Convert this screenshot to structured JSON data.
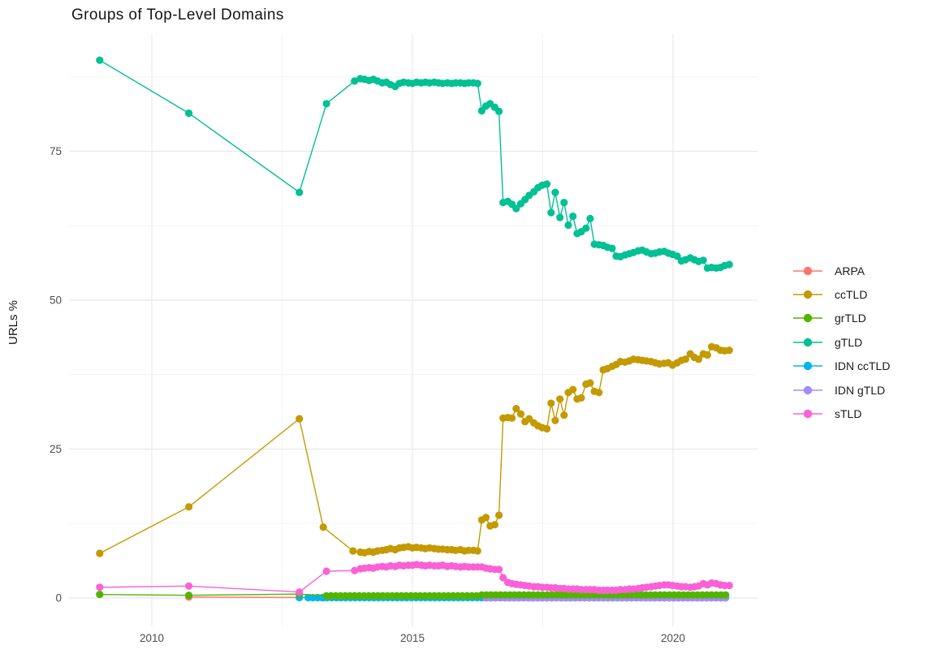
{
  "chart_data": {
    "type": "scatter",
    "title": "Groups of Top-Level Domains",
    "xlabel": "",
    "ylabel": "URLs %",
    "xlim": [
      2008.4,
      2021.7
    ],
    "ylim": [
      -4.7,
      94.7
    ],
    "grid": "on",
    "legend_position": "right",
    "x_ticks": [
      {
        "label": "2010",
        "value": 2010
      },
      {
        "label": "2015",
        "value": 2015
      },
      {
        "label": "2020",
        "value": 2020
      }
    ],
    "x_minor_gridlines": [
      2012.5,
      2017.5
    ],
    "y_ticks": [
      {
        "label": "0",
        "value": 0
      },
      {
        "label": "25",
        "value": 25
      },
      {
        "label": "50",
        "value": 50
      },
      {
        "label": "75",
        "value": 75
      }
    ],
    "y_minor_gridlines": [
      12.5,
      37.5,
      62.5,
      87.5
    ],
    "colors": {
      "grid_major": "#E8E8E8",
      "grid_minor": "#F3F3F3",
      "tick_text": "#4d4d4d",
      "title_text": "#151515"
    },
    "series": [
      {
        "name": "ARPA",
        "color": "#F8766D",
        "points": [
          [
            2010.71,
            0.15
          ],
          [
            2012.83,
            0.1
          ],
          [
            2013.29,
            0.06
          ]
        ],
        "flat_segments": []
      },
      {
        "name": "ccTLD",
        "color": "#C49A00",
        "points": [
          [
            2009,
            7.5
          ],
          [
            2010.71,
            15.3
          ],
          [
            2012.83,
            30.1
          ],
          [
            2013.29,
            11.9
          ],
          [
            2013.86,
            7.9
          ],
          [
            2014,
            7.7
          ],
          [
            2014.08,
            7.6
          ],
          [
            2014.17,
            7.8
          ],
          [
            2014.25,
            7.7
          ],
          [
            2014.33,
            7.9
          ],
          [
            2014.42,
            8
          ],
          [
            2014.5,
            8.1
          ],
          [
            2014.58,
            8.3
          ],
          [
            2014.67,
            8.1
          ],
          [
            2014.75,
            8.4
          ],
          [
            2014.83,
            8.5
          ],
          [
            2014.92,
            8.6
          ],
          [
            2015,
            8.4
          ],
          [
            2015.08,
            8.5
          ],
          [
            2015.17,
            8.4
          ],
          [
            2015.25,
            8.3
          ],
          [
            2015.33,
            8.4
          ],
          [
            2015.42,
            8.3
          ],
          [
            2015.5,
            8.2
          ],
          [
            2015.58,
            8.2
          ],
          [
            2015.67,
            8.1
          ],
          [
            2015.75,
            8.1
          ],
          [
            2015.83,
            8
          ],
          [
            2015.92,
            8.1
          ],
          [
            2016,
            7.9
          ],
          [
            2016.08,
            8
          ],
          [
            2016.17,
            8
          ],
          [
            2016.25,
            7.9
          ],
          [
            2016.33,
            13.1
          ],
          [
            2016.41,
            13.5
          ],
          [
            2016.49,
            12.1
          ],
          [
            2016.58,
            12.3
          ],
          [
            2016.66,
            13.9
          ],
          [
            2016.74,
            30.2
          ],
          [
            2016.83,
            30.3
          ],
          [
            2016.91,
            30.2
          ],
          [
            2016.99,
            31.8
          ],
          [
            2017.08,
            30.9
          ],
          [
            2017.16,
            29.6
          ],
          [
            2017.24,
            30.1
          ],
          [
            2017.33,
            29.4
          ],
          [
            2017.41,
            28.9
          ],
          [
            2017.49,
            28.6
          ],
          [
            2017.58,
            28.4
          ],
          [
            2017.66,
            32.7
          ],
          [
            2017.74,
            29.8
          ],
          [
            2017.83,
            33.4
          ],
          [
            2017.91,
            30.7
          ],
          [
            2017.99,
            34.5
          ],
          [
            2018.08,
            35
          ],
          [
            2018.16,
            33.4
          ],
          [
            2018.24,
            33.6
          ],
          [
            2018.33,
            35.9
          ],
          [
            2018.41,
            36.1
          ],
          [
            2018.49,
            34.7
          ],
          [
            2018.58,
            34.5
          ],
          [
            2018.66,
            38.3
          ],
          [
            2018.74,
            38.5
          ],
          [
            2018.83,
            38.9
          ],
          [
            2018.91,
            39.2
          ],
          [
            2018.99,
            39.7
          ],
          [
            2019.08,
            39.6
          ],
          [
            2019.16,
            39.8
          ],
          [
            2019.24,
            40.1
          ],
          [
            2019.33,
            40
          ],
          [
            2019.41,
            39.9
          ],
          [
            2019.49,
            39.8
          ],
          [
            2019.58,
            39.7
          ],
          [
            2019.66,
            39.5
          ],
          [
            2019.74,
            39.3
          ],
          [
            2019.83,
            39.4
          ],
          [
            2019.91,
            39.5
          ],
          [
            2019.99,
            39.1
          ],
          [
            2020.08,
            39.5
          ],
          [
            2020.16,
            39.9
          ],
          [
            2020.24,
            40.1
          ],
          [
            2020.33,
            41
          ],
          [
            2020.41,
            40.4
          ],
          [
            2020.49,
            40.1
          ],
          [
            2020.58,
            41
          ],
          [
            2020.66,
            40.8
          ],
          [
            2020.74,
            42.2
          ],
          [
            2020.83,
            42
          ],
          [
            2020.91,
            41.6
          ],
          [
            2020.99,
            41.5
          ],
          [
            2021.08,
            41.6
          ]
        ],
        "flat_segments": []
      },
      {
        "name": "grTLD",
        "color": "#53B400",
        "points": [
          [
            2009,
            0.6
          ],
          [
            2010.71,
            0.45
          ],
          [
            2012.83,
            0.65
          ]
        ],
        "flat_segments": [
          {
            "from": 2013.35,
            "to": 2016.25,
            "step": 0.09,
            "value": 0.35
          },
          {
            "from": 2016.33,
            "to": 2021.08,
            "step": 0.09,
            "value": 0.5
          }
        ]
      },
      {
        "name": "gTLD",
        "color": "#00C094",
        "points": [
          [
            2009,
            90.3
          ],
          [
            2010.71,
            81.4
          ],
          [
            2012.83,
            68.1
          ],
          [
            2013.35,
            83
          ],
          [
            2013.89,
            86.8
          ],
          [
            2014,
            87.2
          ],
          [
            2014.08,
            87.1
          ],
          [
            2014.17,
            86.9
          ],
          [
            2014.25,
            87.1
          ],
          [
            2014.33,
            86.8
          ],
          [
            2014.42,
            86.5
          ],
          [
            2014.5,
            86.6
          ],
          [
            2014.58,
            86.2
          ],
          [
            2014.67,
            85.9
          ],
          [
            2014.75,
            86.4
          ],
          [
            2014.83,
            86.6
          ],
          [
            2014.92,
            86.5
          ],
          [
            2015,
            86.4
          ],
          [
            2015.08,
            86.6
          ],
          [
            2015.17,
            86.5
          ],
          [
            2015.25,
            86.6
          ],
          [
            2015.33,
            86.5
          ],
          [
            2015.42,
            86.6
          ],
          [
            2015.5,
            86.5
          ],
          [
            2015.58,
            86.4
          ],
          [
            2015.67,
            86.5
          ],
          [
            2015.75,
            86.4
          ],
          [
            2015.83,
            86.5
          ],
          [
            2015.92,
            86.5
          ],
          [
            2016,
            86.4
          ],
          [
            2016.08,
            86.5
          ],
          [
            2016.17,
            86.5
          ],
          [
            2016.25,
            86.4
          ],
          [
            2016.33,
            81.8
          ],
          [
            2016.41,
            82.6
          ],
          [
            2016.49,
            83
          ],
          [
            2016.58,
            82.4
          ],
          [
            2016.66,
            81.7
          ],
          [
            2016.74,
            66.4
          ],
          [
            2016.83,
            66.6
          ],
          [
            2016.91,
            66.1
          ],
          [
            2016.99,
            65.4
          ],
          [
            2017.08,
            66.2
          ],
          [
            2017.16,
            66.9
          ],
          [
            2017.24,
            67.6
          ],
          [
            2017.33,
            68.2
          ],
          [
            2017.41,
            68.9
          ],
          [
            2017.49,
            69.3
          ],
          [
            2017.58,
            69.5
          ],
          [
            2017.66,
            64.7
          ],
          [
            2017.74,
            68.1
          ],
          [
            2017.83,
            63.9
          ],
          [
            2017.91,
            66.4
          ],
          [
            2017.99,
            62.6
          ],
          [
            2018.08,
            64.1
          ],
          [
            2018.16,
            61.2
          ],
          [
            2018.24,
            61.5
          ],
          [
            2018.33,
            62.1
          ],
          [
            2018.41,
            63.7
          ],
          [
            2018.49,
            59.4
          ],
          [
            2018.58,
            59.3
          ],
          [
            2018.66,
            59.2
          ],
          [
            2018.74,
            58.9
          ],
          [
            2018.83,
            58.7
          ],
          [
            2018.91,
            57.4
          ],
          [
            2018.99,
            57.3
          ],
          [
            2019.08,
            57.6
          ],
          [
            2019.16,
            57.8
          ],
          [
            2019.24,
            58
          ],
          [
            2019.33,
            58.3
          ],
          [
            2019.41,
            58.4
          ],
          [
            2019.49,
            58.1
          ],
          [
            2019.58,
            57.8
          ],
          [
            2019.66,
            57.9
          ],
          [
            2019.74,
            58.1
          ],
          [
            2019.83,
            58.2
          ],
          [
            2019.91,
            57.9
          ],
          [
            2019.99,
            57.7
          ],
          [
            2020.08,
            57.4
          ],
          [
            2020.16,
            56.6
          ],
          [
            2020.24,
            56.8
          ],
          [
            2020.33,
            57.1
          ],
          [
            2020.41,
            56.8
          ],
          [
            2020.49,
            56.5
          ],
          [
            2020.58,
            56.7
          ],
          [
            2020.66,
            55.4
          ],
          [
            2020.74,
            55.5
          ],
          [
            2020.83,
            55.4
          ],
          [
            2020.91,
            55.5
          ],
          [
            2020.99,
            55.8
          ],
          [
            2021.08,
            56
          ]
        ],
        "flat_segments": []
      },
      {
        "name": "IDN ccTLD",
        "color": "#00B6EB",
        "points": [
          [
            2012.83,
            0.07
          ]
        ],
        "flat_segments": [
          {
            "from": 2013.0,
            "to": 2021.08,
            "step": 0.09,
            "value": 0.05
          }
        ]
      },
      {
        "name": "IDN gTLD",
        "color": "#A58AFF",
        "points": [],
        "flat_segments": [
          {
            "from": 2016.41,
            "to": 2021.08,
            "step": 0.09,
            "value": 0.02
          }
        ]
      },
      {
        "name": "sTLD",
        "color": "#FB61D7",
        "points": [
          [
            2009,
            1.8
          ],
          [
            2010.71,
            2
          ],
          [
            2012.83,
            1
          ],
          [
            2013.35,
            4.5
          ],
          [
            2013.89,
            4.6
          ],
          [
            2014,
            4.9
          ],
          [
            2014.08,
            5
          ],
          [
            2014.17,
            5.1
          ],
          [
            2014.25,
            5
          ],
          [
            2014.33,
            5.2
          ],
          [
            2014.42,
            5.3
          ],
          [
            2014.5,
            5.2
          ],
          [
            2014.58,
            5.4
          ],
          [
            2014.67,
            5.3
          ],
          [
            2014.75,
            5.5
          ],
          [
            2014.83,
            5.4
          ],
          [
            2014.92,
            5.5
          ],
          [
            2015,
            5.5
          ],
          [
            2015.08,
            5.6
          ],
          [
            2015.17,
            5.5
          ],
          [
            2015.25,
            5.4
          ],
          [
            2015.33,
            5.5
          ],
          [
            2015.42,
            5.4
          ],
          [
            2015.5,
            5.4
          ],
          [
            2015.58,
            5.5
          ],
          [
            2015.67,
            5.3
          ],
          [
            2015.75,
            5.4
          ],
          [
            2015.83,
            5.3
          ],
          [
            2015.92,
            5.2
          ],
          [
            2016,
            5.3
          ],
          [
            2016.08,
            5.2
          ],
          [
            2016.17,
            5.2
          ],
          [
            2016.25,
            5.2
          ],
          [
            2016.33,
            5.2
          ],
          [
            2016.41,
            5
          ],
          [
            2016.49,
            4.9
          ],
          [
            2016.58,
            4.8
          ],
          [
            2016.66,
            4.8
          ],
          [
            2016.74,
            3.4
          ],
          [
            2016.83,
            2.6
          ],
          [
            2016.91,
            2.4
          ],
          [
            2016.99,
            2.3
          ],
          [
            2017.08,
            2.2
          ],
          [
            2017.16,
            2.1
          ],
          [
            2017.24,
            2
          ],
          [
            2017.33,
            1.9
          ],
          [
            2017.41,
            1.9
          ],
          [
            2017.49,
            1.8
          ],
          [
            2017.58,
            1.8
          ],
          [
            2017.66,
            1.7
          ],
          [
            2017.74,
            1.7
          ],
          [
            2017.83,
            1.6
          ],
          [
            2017.91,
            1.6
          ],
          [
            2017.99,
            1.5
          ],
          [
            2018.08,
            1.5
          ],
          [
            2018.16,
            1.5
          ],
          [
            2018.24,
            1.4
          ],
          [
            2018.33,
            1.4
          ],
          [
            2018.41,
            1.4
          ],
          [
            2018.49,
            1.4
          ],
          [
            2018.58,
            1.3
          ],
          [
            2018.66,
            1.3
          ],
          [
            2018.74,
            1.3
          ],
          [
            2018.83,
            1.3
          ],
          [
            2018.91,
            1.3
          ],
          [
            2018.99,
            1.4
          ],
          [
            2019.08,
            1.4
          ],
          [
            2019.16,
            1.5
          ],
          [
            2019.24,
            1.5
          ],
          [
            2019.33,
            1.6
          ],
          [
            2019.41,
            1.7
          ],
          [
            2019.49,
            1.8
          ],
          [
            2019.58,
            1.9
          ],
          [
            2019.66,
            2
          ],
          [
            2019.74,
            2.1
          ],
          [
            2019.83,
            2.2
          ],
          [
            2019.91,
            2.2
          ],
          [
            2019.99,
            2.1
          ],
          [
            2020.08,
            2
          ],
          [
            2020.16,
            1.9
          ],
          [
            2020.24,
            1.9
          ],
          [
            2020.33,
            1.8
          ],
          [
            2020.41,
            1.9
          ],
          [
            2020.49,
            2
          ],
          [
            2020.58,
            2.4
          ],
          [
            2020.66,
            2.2
          ],
          [
            2020.74,
            2.5
          ],
          [
            2020.83,
            2.4
          ],
          [
            2020.91,
            2.2
          ],
          [
            2020.99,
            2.1
          ],
          [
            2021.08,
            2.1
          ]
        ],
        "flat_segments": []
      }
    ]
  }
}
